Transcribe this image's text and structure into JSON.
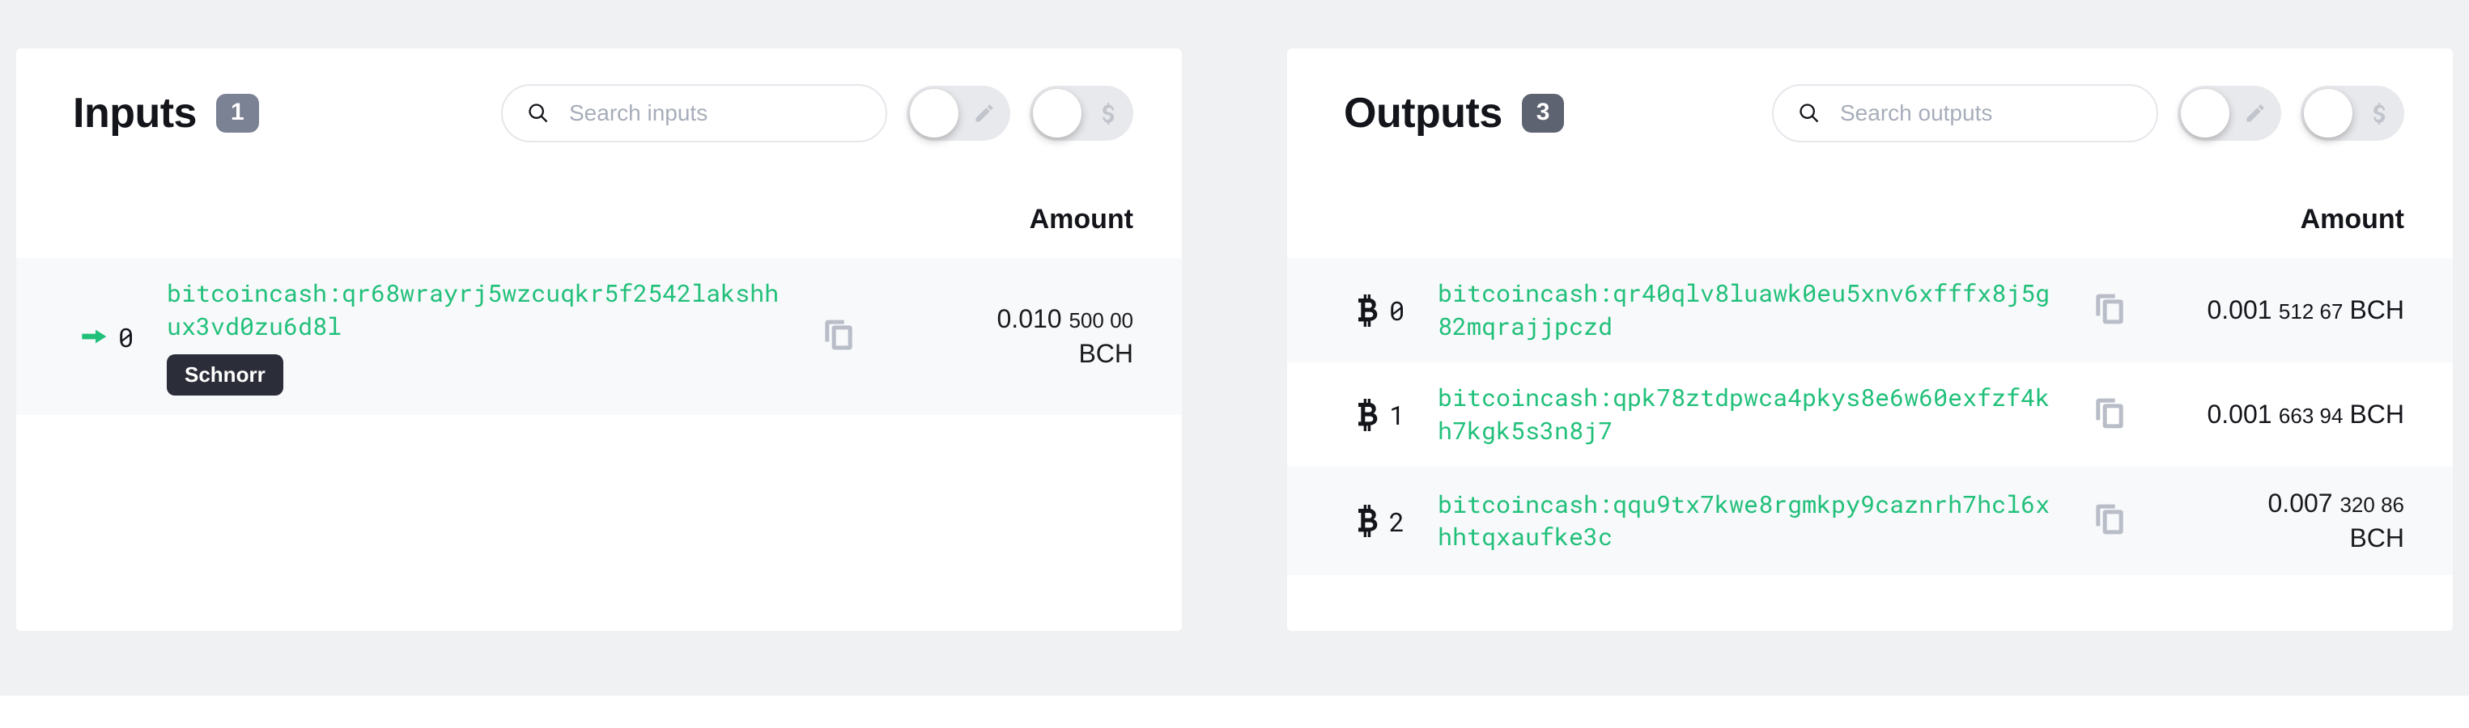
{
  "colors": {
    "page_bg": "#f0f1f3",
    "panel_bg": "#ffffff",
    "text": "#14151a",
    "accent": "#21c07a",
    "muted": "#a7adba",
    "badge_bg": "#7b8294",
    "badge_bg_dark": "#5e6372",
    "row_alt_bg": "#f8f9fb",
    "toggle_track": "#e8e9ec",
    "icon_muted": "#b9bdc8",
    "tag_bg": "#2b2e38"
  },
  "inputs": {
    "title": "Inputs",
    "count": "1",
    "search_placeholder": "Search inputs",
    "amount_header": "Amount",
    "currency": "BCH",
    "rows": [
      {
        "index": "0",
        "address": "bitcoincash:qr68wrayrj5wzcuqkr5f2542lakshhux3vd0zu6d8l",
        "tag": "Schnorr",
        "amount_major": "0.010",
        "amount_minor": "500 00",
        "amount_stacked": true,
        "icon": "hand-point-right"
      }
    ]
  },
  "outputs": {
    "title": "Outputs",
    "count": "3",
    "search_placeholder": "Search outputs",
    "amount_header": "Amount",
    "currency": "BCH",
    "rows": [
      {
        "index": "0",
        "address": "bitcoincash:qr40qlv8luawk0eu5xnv6xfffx8j5g82mqrajjpczd",
        "amount_major": "0.001",
        "amount_minor": "512 67",
        "amount_stacked": false,
        "icon": "bitcoin"
      },
      {
        "index": "1",
        "address": "bitcoincash:qpk78ztdpwca4pkys8e6w60exfzf4kh7kgk5s3n8j7",
        "amount_major": "0.001",
        "amount_minor": "663 94",
        "amount_stacked": false,
        "icon": "bitcoin"
      },
      {
        "index": "2",
        "address": "bitcoincash:qqu9tx7kwe8rgmkpy9caznrh7hcl6xhhtqxaufke3c",
        "amount_major": "0.007",
        "amount_minor": "320 86",
        "amount_stacked": true,
        "icon": "bitcoin"
      }
    ]
  }
}
